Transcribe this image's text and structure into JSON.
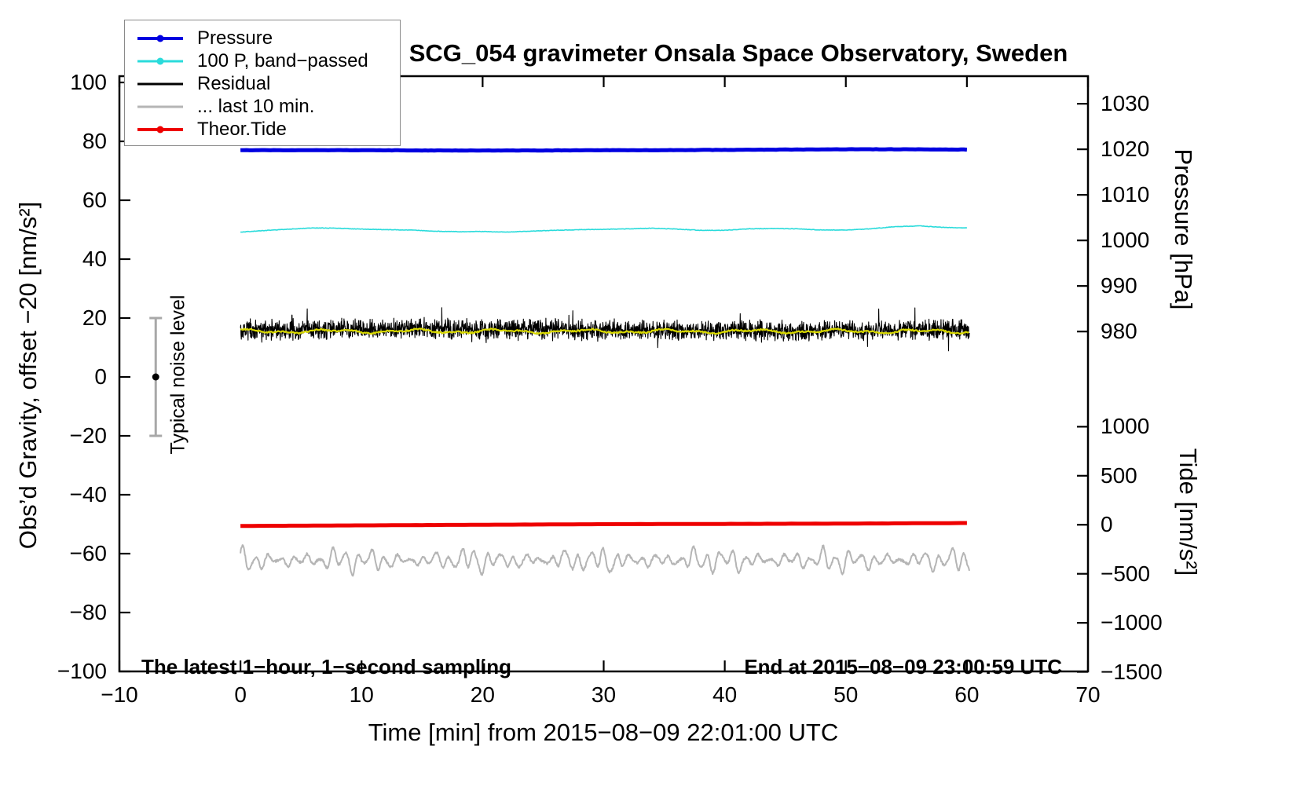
{
  "header": {
    "title": "SCG_054 gravimeter Onsala Space Observatory, Sweden"
  },
  "annotations": {
    "sampling_note": "The latest 1−hour, 1−second sampling",
    "end_note": "End at 2015−08−09 23:00:59 UTC",
    "noise_level_label": "Typical noise level"
  },
  "legend": {
    "position": "top-left",
    "entries": [
      {
        "label": "Pressure",
        "color": "#0000e0",
        "marker": "line-dot"
      },
      {
        "label": "100 P, band−passed",
        "color": "#2adbdb",
        "marker": "line-dot"
      },
      {
        "label": "Residual",
        "color": "#000000",
        "marker": "line"
      },
      {
        "label": "... last 10 min.",
        "color": "#b5b5b5",
        "marker": "line"
      },
      {
        "label": "Theor.Tide",
        "color": "#ee0000",
        "marker": "line-dot"
      }
    ]
  },
  "chart_data": {
    "type": "line",
    "title": "SCG_054 gravimeter Onsala Space Observatory, Sweden",
    "xlabel": "Time [min] from 2015−08−09 22:01:00 UTC",
    "ylabel_left": "Obs’d Gravity, offset −20 [nm/s²]",
    "ylabel_right_pressure": "Pressure [hPa]",
    "ylabel_right_tide": "Tide [nm/s²]",
    "xlim": [
      -10,
      70
    ],
    "ylim_left": [
      -100,
      100
    ],
    "grid": false,
    "x_ticks": [
      -10,
      0,
      10,
      20,
      30,
      40,
      50,
      60,
      70
    ],
    "y_ticks_left": [
      100,
      80,
      60,
      40,
      20,
      0,
      -20,
      -40,
      -60,
      -80,
      -100
    ],
    "pressure_axis": {
      "ticks": [
        1030,
        1020,
        1010,
        1000,
        990,
        980
      ],
      "anchor_value": 1020,
      "anchor_left_units": 77.3,
      "left_units_per_hpa": 1.547
    },
    "tide_axis": {
      "ticks": [
        1000,
        500,
        0,
        -500,
        -1000,
        -1500
      ],
      "anchor_value": 0,
      "anchor_left_units": -50.2,
      "left_units_per_unit": 0.0333
    },
    "noise_bar": {
      "x": -7,
      "y_center": 0,
      "half_range": 20
    },
    "series": [
      {
        "name": "Pressure",
        "color": "#0000e0",
        "axis": "pressure-right",
        "approx_value_hpa": 1020,
        "x_start": 0,
        "x_step": 5,
        "values_left_units": [
          77.0,
          77.0,
          77.0,
          76.9,
          76.9,
          76.9,
          77.0,
          77.0,
          77.1,
          77.2,
          77.3,
          77.3,
          77.2
        ]
      },
      {
        "name": "100 P, band−passed",
        "color": "#2adbdb",
        "x_start": 0,
        "x_step": 2,
        "values_left_units": [
          49.2,
          49.7,
          50.2,
          50.6,
          50.5,
          50.2,
          50.0,
          49.9,
          49.5,
          49.3,
          49.4,
          49.2,
          49.5,
          49.8,
          50.0,
          50.1,
          50.3,
          50.5,
          50.2,
          49.8,
          49.8,
          50.3,
          50.4,
          50.3,
          49.9,
          49.9,
          50.3,
          51.0,
          51.3,
          50.8,
          50.6
        ]
      },
      {
        "name": "Residual",
        "color": "#000000",
        "baseline": 16.0,
        "noise_amp": 4.0,
        "spike_prob": 0.012,
        "x_start": 0,
        "x_end": 60.2
      },
      {
        "name": "Residual smoothed (yellow overlay)",
        "color": "#d8d800",
        "baseline": 15.5,
        "wiggle_amp": 0.6,
        "x_start": 0,
        "x_end": 60.2
      },
      {
        "name": "... last 10 min.",
        "color": "#b5b5b5",
        "baseline": -62.3,
        "osc_amp": 2.5,
        "x_start": 0,
        "x_end": 60.2
      },
      {
        "name": "Theor.Tide",
        "color": "#ee0000",
        "axis": "tide-right",
        "x_start": 0,
        "x_step": 10,
        "values_left_units": [
          -50.6,
          -50.4,
          -50.2,
          -50.0,
          -49.9,
          -49.8,
          -49.6
        ]
      }
    ]
  }
}
